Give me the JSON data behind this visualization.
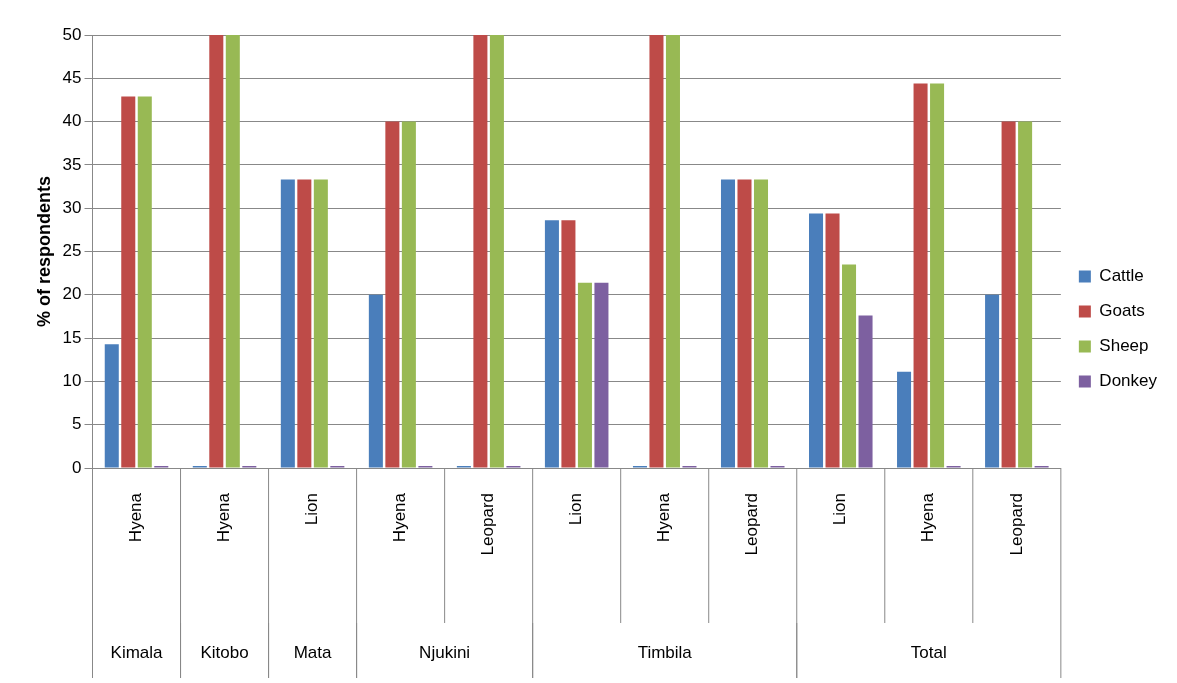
{
  "chart_data": {
    "type": "bar",
    "ylabel": "% of respondents",
    "categories": [
      "Hyena",
      "Hyena",
      "Lion",
      "Hyena",
      "Leopard",
      "Lion",
      "Hyena",
      "Leopard",
      "Lion",
      "Hyena",
      "Leopard"
    ],
    "series": [
      {
        "name": "Cattle",
        "color": "#4a7ebb",
        "values": [
          14.3,
          0,
          33.3,
          20,
          0,
          28.6,
          0,
          33.3,
          29.4,
          11.1,
          20
        ]
      },
      {
        "name": "Goats",
        "color": "#be4b48",
        "values": [
          42.9,
          50,
          33.3,
          40,
          50,
          28.6,
          50,
          33.3,
          29.4,
          44.4,
          40
        ]
      },
      {
        "name": "Sheep",
        "color": "#98b954",
        "values": [
          42.9,
          50,
          33.3,
          40,
          50,
          21.4,
          50,
          33.3,
          23.5,
          44.4,
          40
        ]
      },
      {
        "name": "Donkey",
        "color": "#7d60a0",
        "values": [
          0,
          0,
          0,
          0,
          0,
          21.4,
          0,
          0,
          17.6,
          0,
          0
        ]
      }
    ],
    "annotations": [
      "Kimala",
      "Kitobo",
      "Mata",
      "Njukini",
      "Timbila",
      "Total"
    ],
    "ylim": [
      0,
      50
    ],
    "yticks": [
      0,
      5,
      10,
      15,
      20,
      25,
      30,
      35,
      40,
      45,
      50
    ],
    "grid": "y",
    "legend": "right"
  }
}
